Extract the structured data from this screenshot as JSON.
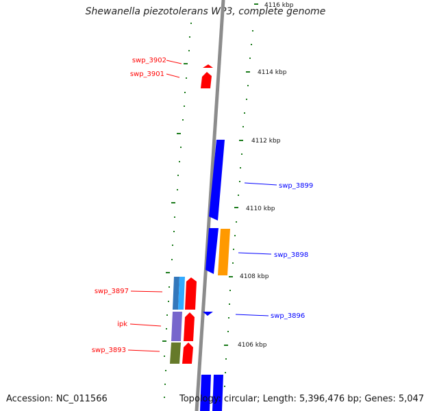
{
  "title": "Shewanella piezotolerans WP3, complete genome",
  "footer": {
    "accession": "Accession: NC_011566",
    "topology": "Topology: circular; Length: 5,396,476 bp; Genes: 5,047"
  },
  "colors": {
    "backbone": "#8c8c8c",
    "tick": "#1a7a1a",
    "forward_gene": "#ff0000",
    "reverse_gene": "#0000ff",
    "orange_gene": "#ff9900",
    "lightblue_gene": "#33aaff",
    "steelblue_gene": "#3377bb",
    "purple_gene": "#7766cc",
    "olive_gene": "#667a2a"
  },
  "scale_labels": [
    "4116 kbp",
    "4114 kbp",
    "4112 kbp",
    "4110 kbp",
    "4108 kbp",
    "4106 kbp"
  ],
  "gene_labels": {
    "left": [
      "swp_3902",
      "swp_3901",
      "swp_3897",
      "ipk",
      "swp_3893"
    ],
    "right": [
      "swp_3899",
      "swp_3898",
      "swp_3896"
    ]
  }
}
